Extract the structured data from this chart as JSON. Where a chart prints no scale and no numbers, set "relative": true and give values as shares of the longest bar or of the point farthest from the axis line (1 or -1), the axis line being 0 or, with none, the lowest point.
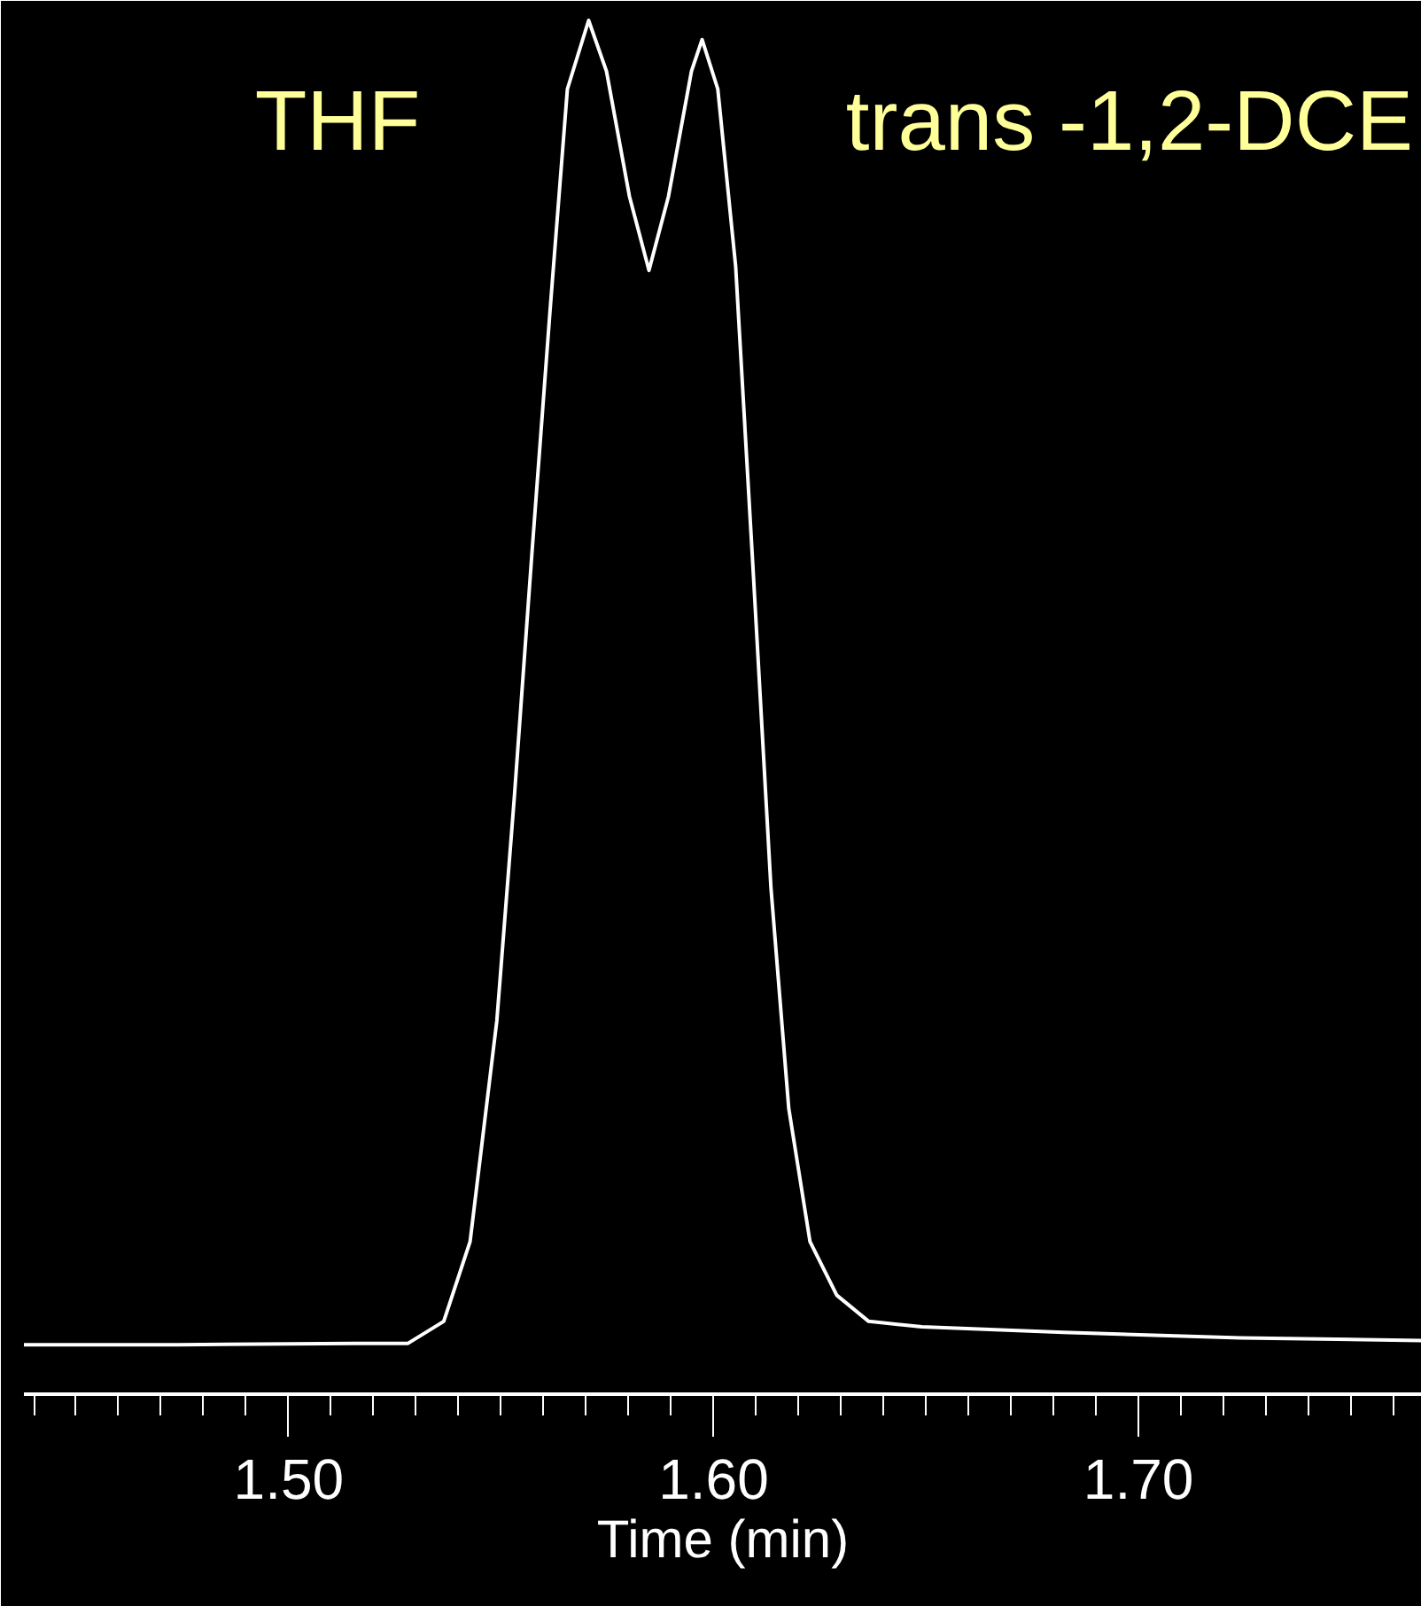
{
  "chart_data": {
    "type": "line",
    "relative": true,
    "xlabel": "Time (min)",
    "annotations": [
      "THF",
      "trans -1,2-DCE"
    ],
    "xlim": [
      1.4377,
      1.7667
    ],
    "xticks": [
      {
        "value": 1.44,
        "label": null
      },
      {
        "value": 1.45,
        "label": null
      },
      {
        "value": 1.46,
        "label": null
      },
      {
        "value": 1.47,
        "label": null
      },
      {
        "value": 1.48,
        "label": null
      },
      {
        "value": 1.49,
        "label": null
      },
      {
        "value": 1.5,
        "label": "1.50"
      },
      {
        "value": 1.51,
        "label": null
      },
      {
        "value": 1.52,
        "label": null
      },
      {
        "value": 1.53,
        "label": null
      },
      {
        "value": 1.54,
        "label": null
      },
      {
        "value": 1.55,
        "label": null
      },
      {
        "value": 1.56,
        "label": null
      },
      {
        "value": 1.57,
        "label": null
      },
      {
        "value": 1.58,
        "label": null
      },
      {
        "value": 1.59,
        "label": null
      },
      {
        "value": 1.6,
        "label": "1.60"
      },
      {
        "value": 1.61,
        "label": null
      },
      {
        "value": 1.62,
        "label": null
      },
      {
        "value": 1.63,
        "label": null
      },
      {
        "value": 1.64,
        "label": null
      },
      {
        "value": 1.65,
        "label": null
      },
      {
        "value": 1.66,
        "label": null
      },
      {
        "value": 1.67,
        "label": null
      },
      {
        "value": 1.68,
        "label": null
      },
      {
        "value": 1.69,
        "label": null
      },
      {
        "value": 1.7,
        "label": "1.70"
      },
      {
        "value": 1.71,
        "label": null
      },
      {
        "value": 1.72,
        "label": null
      },
      {
        "value": 1.73,
        "label": null
      },
      {
        "value": 1.74,
        "label": null
      },
      {
        "value": 1.75,
        "label": null
      },
      {
        "value": 1.76,
        "label": null
      }
    ],
    "x": [
      1.4377,
      1.474,
      1.5156,
      1.5281,
      1.5365,
      1.5427,
      1.549,
      1.5531,
      1.5573,
      1.5615,
      1.5656,
      1.5706,
      1.5748,
      1.5802,
      1.5848,
      1.5894,
      1.5948,
      1.5973,
      1.601,
      1.6052,
      1.6094,
      1.6135,
      1.6177,
      1.6227,
      1.629,
      1.6365,
      1.649,
      1.6823,
      1.724,
      1.7665
    ],
    "series": [
      {
        "color": "#ffffff",
        "values": [
          0.036,
          0.036,
          0.037,
          0.037,
          0.053,
          0.111,
          0.272,
          0.434,
          0.614,
          0.788,
          0.95,
          1,
          0.963,
          0.872,
          0.818,
          0.872,
          0.963,
          0.986,
          0.95,
          0.821,
          0.595,
          0.369,
          0.208,
          0.111,
          0.072,
          0.053,
          0.049,
          0.045,
          0.041,
          0.039
        ]
      }
    ],
    "grid": false,
    "marker": "none",
    "line_style": "solid"
  }
}
